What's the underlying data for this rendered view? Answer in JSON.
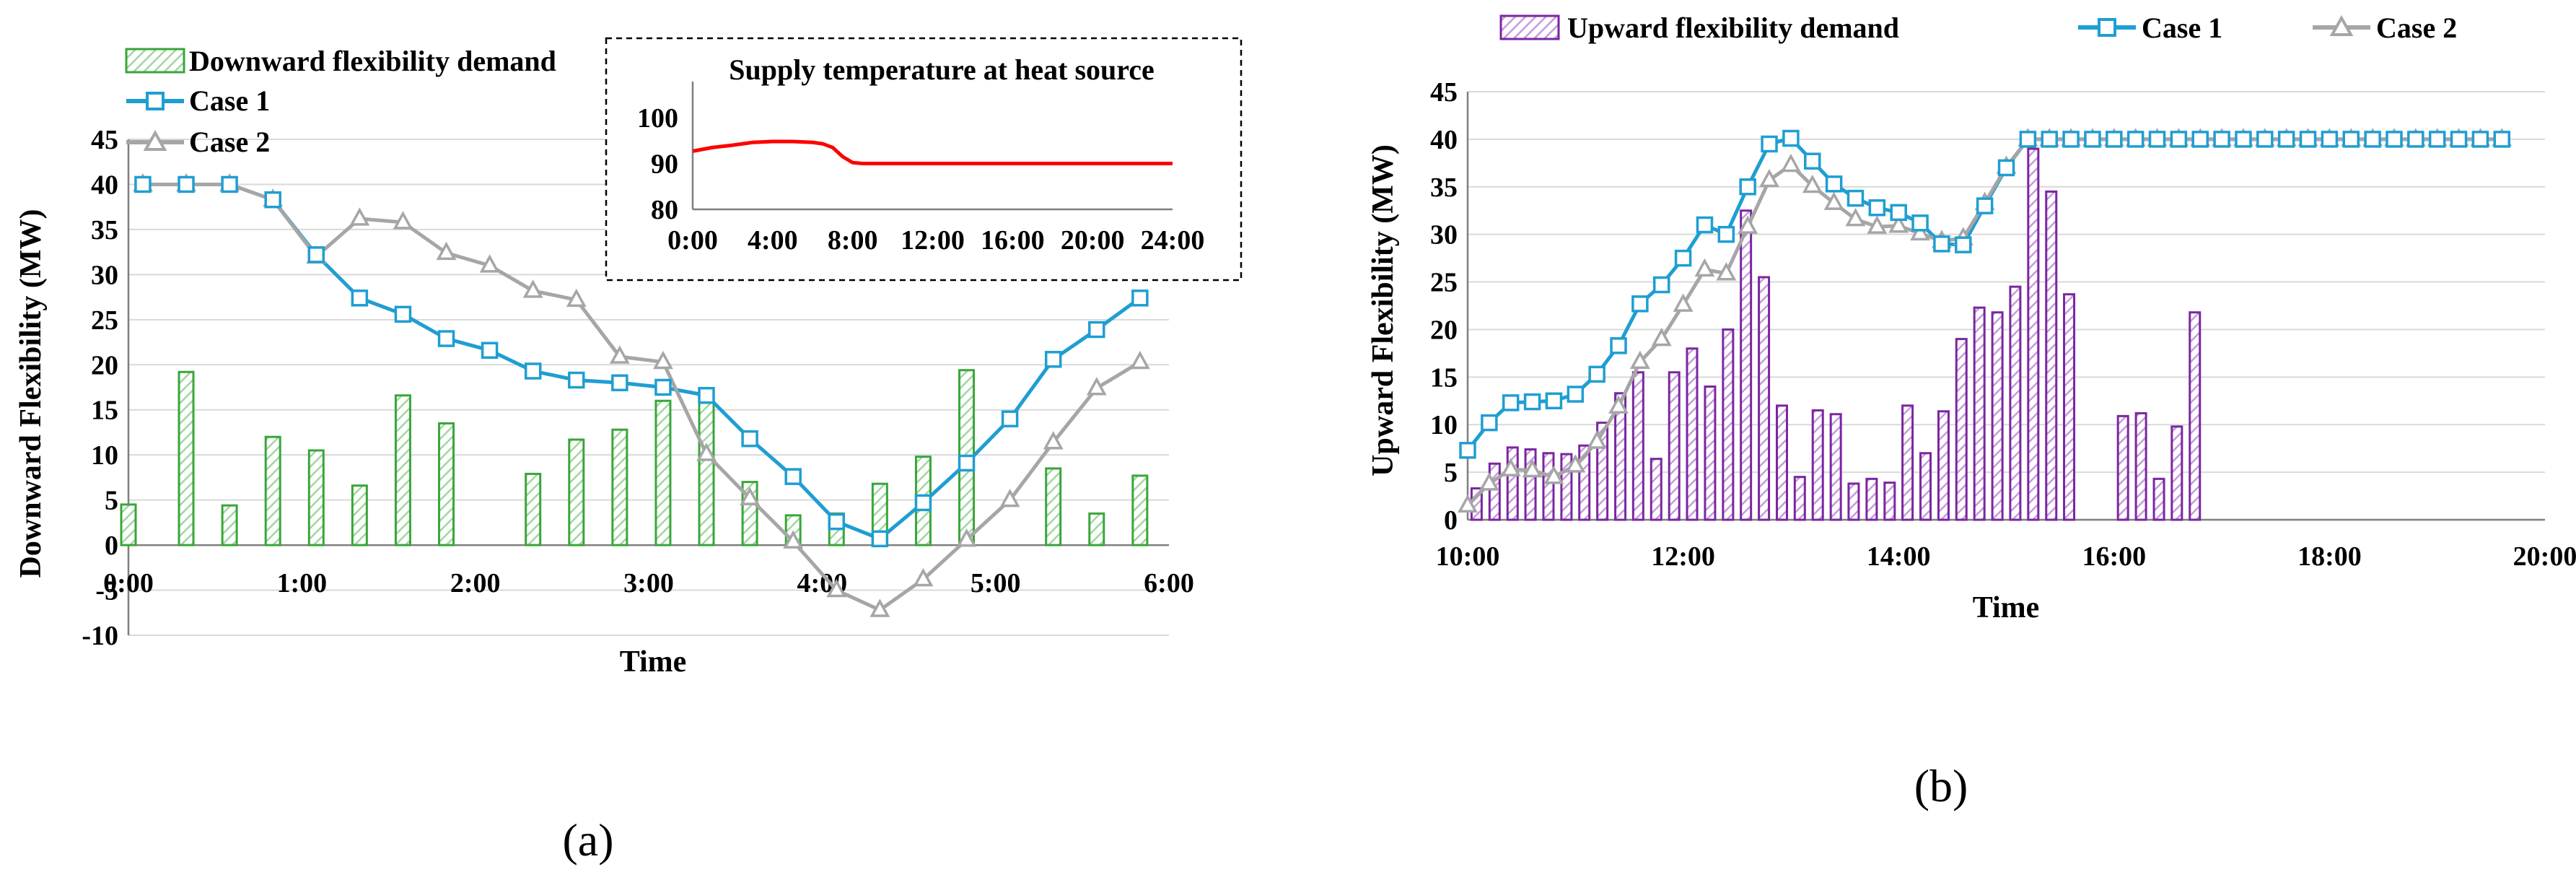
{
  "colors": {
    "case1": "#1f9ed2",
    "case2": "#a6a6a6",
    "down_bar": "#3aa53a",
    "up_bar": "#7a27a0",
    "inset_line": "#ff0000"
  },
  "chart_data": [
    {
      "type": "bar+line",
      "panel_label": "(a)",
      "xlabel": "Time",
      "ylabel": "Downward Flexibility (MW)",
      "ylim": [
        -10,
        45
      ],
      "yticks": [
        -10,
        -5,
        0,
        5,
        10,
        15,
        20,
        25,
        30,
        35,
        40,
        45
      ],
      "xlim": [
        0,
        6
      ],
      "xticks": [
        0,
        1,
        2,
        3,
        4,
        5,
        6
      ],
      "xtick_labels": [
        "0:00",
        "1:00",
        "2:00",
        "3:00",
        "4:00",
        "5:00",
        "6:00"
      ],
      "legend": [
        "Downward flexibility demand",
        "Case 1",
        "Case 2"
      ],
      "bars": {
        "name": "Downward flexibility demand",
        "x": [
          0.0,
          0.333,
          0.583,
          0.833,
          1.083,
          1.333,
          1.583,
          1.833,
          2.083,
          2.333,
          2.583,
          2.833,
          3.083,
          3.333,
          3.583,
          3.833,
          4.083,
          4.333,
          4.583,
          4.833,
          5.083,
          5.333,
          5.583,
          5.833
        ],
        "values": [
          4.5,
          19.2,
          4.4,
          12.0,
          10.5,
          6.6,
          16.6,
          13.5,
          0,
          7.9,
          11.7,
          12.8,
          16.0,
          16.4,
          7.0,
          3.3,
          3.5,
          6.8,
          9.8,
          19.4,
          0,
          8.5,
          3.5,
          7.7
        ]
      },
      "series": [
        {
          "name": "Case 1",
          "x": [
            0.083,
            0.333,
            0.583,
            0.833,
            1.083,
            1.333,
            1.583,
            1.833,
            2.083,
            2.333,
            2.583,
            2.833,
            3.083,
            3.333,
            3.583,
            3.833,
            4.083,
            4.333,
            4.583,
            4.833,
            5.083,
            5.333,
            5.583,
            5.833
          ],
          "values": [
            40,
            40,
            40,
            38.3,
            32.2,
            27.4,
            25.6,
            22.9,
            21.6,
            19.3,
            18.3,
            18.0,
            17.5,
            16.6,
            11.8,
            7.6,
            2.6,
            0.7,
            4.7,
            9.1,
            14.0,
            20.6,
            23.9,
            27.4
          ]
        },
        {
          "name": "Case 2",
          "x": [
            0.083,
            0.333,
            0.583,
            0.833,
            1.083,
            1.333,
            1.583,
            1.833,
            2.083,
            2.333,
            2.583,
            2.833,
            3.083,
            3.333,
            3.583,
            3.833,
            4.083,
            4.333,
            4.583,
            4.833,
            5.083,
            5.333,
            5.583,
            5.833
          ],
          "values": [
            40,
            40,
            40,
            38.3,
            32.0,
            36.2,
            35.8,
            32.4,
            31.0,
            28.2,
            27.2,
            20.9,
            20.3,
            10.1,
            5.2,
            0.4,
            -5.0,
            -7.2,
            -3.8,
            0.6,
            5.0,
            11.4,
            17.4,
            20.3
          ]
        }
      ],
      "inset": {
        "type": "line",
        "title": "Supply temperature at heat source",
        "ylim": [
          80,
          100
        ],
        "yticks": [
          80,
          90,
          100
        ],
        "xlim": [
          0,
          24
        ],
        "xticks": [
          0,
          4,
          8,
          12,
          16,
          20,
          24
        ],
        "xtick_labels": [
          "0:00",
          "4:00",
          "8:00",
          "12:00",
          "16:00",
          "20:00",
          "24:00"
        ],
        "x": [
          0,
          1,
          2,
          3,
          4,
          5,
          6,
          6.5,
          7,
          7.5,
          8,
          8.5,
          10,
          12,
          16,
          20,
          24
        ],
        "values": [
          92.7,
          93.5,
          94.0,
          94.6,
          94.8,
          94.8,
          94.6,
          94.3,
          93.5,
          91.5,
          90.2,
          90.0,
          90.0,
          90.0,
          90.0,
          90.0,
          90.0
        ]
      }
    },
    {
      "type": "bar+line",
      "panel_label": "(b)",
      "xlabel": "Time",
      "ylabel": "Upward Flexibility (MW)",
      "ylim": [
        0,
        45
      ],
      "yticks": [
        0,
        5,
        10,
        15,
        20,
        25,
        30,
        35,
        40,
        45
      ],
      "xlim": [
        10,
        20
      ],
      "xticks": [
        10,
        12,
        14,
        16,
        18,
        20
      ],
      "xtick_labels": [
        "10:00",
        "12:00",
        "14:00",
        "16:00",
        "18:00",
        "20:00"
      ],
      "legend": [
        "Upward flexibility demand",
        "Case 1",
        "Case 2"
      ],
      "bars": {
        "name": "Upward flexibility demand",
        "x": [
          10.083,
          10.25,
          10.417,
          10.583,
          10.75,
          10.917,
          11.083,
          11.25,
          11.417,
          11.583,
          11.75,
          11.917,
          12.083,
          12.25,
          12.417,
          12.583,
          12.75,
          12.917,
          13.083,
          13.25,
          13.417,
          13.583,
          13.75,
          13.917,
          14.083,
          14.25,
          14.417,
          14.583,
          14.75,
          14.917,
          15.083,
          15.25,
          15.417,
          15.583,
          15.75,
          15.917,
          16.083,
          16.25,
          16.417,
          16.583,
          16.75,
          16.917,
          17.083,
          17.25,
          17.417,
          17.583,
          17.75,
          17.917,
          18.083,
          18.25,
          18.417,
          18.583,
          18.75,
          18.917,
          19.083,
          19.25,
          19.417,
          19.583,
          19.75,
          19.917
        ],
        "values": [
          3.3,
          5.9,
          7.6,
          7.4,
          7.0,
          6.9,
          7.8,
          10.2,
          13.3,
          15.5,
          6.4,
          15.5,
          18.0,
          14.0,
          20.0,
          32.5,
          25.5,
          12.0,
          4.5,
          11.5,
          11.1,
          3.8,
          4.3,
          3.9,
          12.0,
          7.0,
          11.4,
          19.0,
          22.3,
          21.8,
          24.5,
          39.0,
          34.5,
          23.7,
          0,
          0,
          10.9,
          11.2,
          4.3,
          9.8,
          21.8,
          0,
          0,
          0,
          0,
          0,
          0,
          0,
          0,
          0,
          0,
          0,
          0,
          0,
          0,
          0,
          0,
          0,
          0,
          0
        ]
      },
      "series": [
        {
          "name": "Case 1",
          "x": [
            10.0,
            10.2,
            10.4,
            10.6,
            10.8,
            11.0,
            11.2,
            11.4,
            11.6,
            11.8,
            12.0,
            12.2,
            12.4,
            12.6,
            12.8,
            13.0,
            13.2,
            13.4,
            13.6,
            13.8,
            14.0,
            14.2,
            14.4,
            14.6,
            14.8,
            15.0,
            15.2,
            15.4,
            15.6,
            15.8,
            16.0,
            16.2,
            16.4,
            16.6,
            16.8,
            17.0,
            17.2,
            17.4,
            17.6,
            17.8,
            18.0,
            18.2,
            18.4,
            18.6,
            18.8,
            19.0,
            19.2,
            19.4,
            19.6
          ],
          "values": [
            7.3,
            10.2,
            12.3,
            12.4,
            12.5,
            13.2,
            15.3,
            18.3,
            22.7,
            24.7,
            27.5,
            31.0,
            30.0,
            35.0,
            39.5,
            40.1,
            37.7,
            35.3,
            33.8,
            32.8,
            32.3,
            31.2,
            29.0,
            28.9,
            33.0,
            37.0,
            40.0,
            40.0,
            40.0,
            40.0,
            40.0,
            40.0,
            40.0,
            40.0,
            40.0,
            40.0,
            40.0,
            40.0,
            40.0,
            40.0,
            40.0,
            40.0,
            40.0,
            40.0,
            40.0,
            40.0,
            40.0,
            40.0,
            40.0
          ]
        },
        {
          "name": "Case 2",
          "x": [
            10.0,
            10.2,
            10.4,
            10.6,
            10.8,
            11.0,
            11.2,
            11.4,
            11.6,
            11.8,
            12.0,
            12.2,
            12.4,
            12.6,
            12.8,
            13.0,
            13.2,
            13.4,
            13.6,
            13.8,
            14.0,
            14.2,
            14.4,
            14.6,
            14.8,
            15.0,
            15.2,
            15.4,
            15.6,
            15.8,
            16.0,
            16.2,
            16.4,
            16.6,
            16.8,
            17.0,
            17.2,
            17.4,
            17.6,
            17.8,
            18.0,
            18.2,
            18.4,
            18.6,
            18.8,
            19.0,
            19.2,
            19.4,
            19.6
          ],
          "values": [
            1.5,
            3.8,
            5.3,
            5.2,
            4.5,
            5.7,
            8.2,
            11.9,
            16.6,
            19.0,
            22.6,
            26.3,
            25.9,
            30.8,
            35.7,
            37.3,
            35.1,
            33.3,
            31.6,
            30.8,
            30.9,
            30.1,
            29.3,
            29.6,
            33.3,
            37.1,
            40.0,
            40.0,
            40.0,
            40.0,
            40.0,
            40.0,
            40.0,
            40.0,
            40.0,
            40.0,
            40.0,
            40.0,
            40.0,
            40.0,
            40.0,
            40.0,
            40.0,
            40.0,
            40.0,
            40.0,
            40.0,
            40.0,
            40.0
          ]
        }
      ]
    }
  ]
}
